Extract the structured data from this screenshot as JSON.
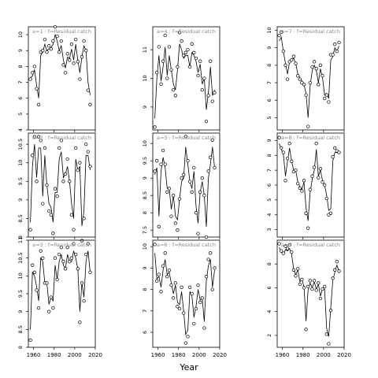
{
  "chart_data": {
    "type": "line",
    "layout": "3x3 grid of panels, column-major (a=1..3 first column, a=4..6 second, a=7..9 third)",
    "xlabel": "Year",
    "x_ticks": [
      1960,
      1980,
      2000,
      2020
    ],
    "x_tick_labels_on_bottom_row_only": true,
    "xlim": [
      1955,
      2020
    ],
    "point_marker": "open circle",
    "fitted_line": "solid",
    "panels": [
      {
        "label": "a=1  :  f=Residual catch",
        "ylim": [
          4,
          10.5
        ],
        "y_ticks": [
          4,
          5,
          6,
          7,
          8,
          9,
          10
        ],
        "x": [
          1957,
          1959,
          1961,
          1963,
          1965,
          1967,
          1969,
          1971,
          1973,
          1975,
          1977,
          1979,
          1981,
          1983,
          1985,
          1987,
          1989,
          1991,
          1993,
          1995,
          1997,
          1999,
          2001,
          2003,
          2005,
          2007,
          2009,
          2011,
          2013,
          2015
        ],
        "observed": [
          7.2,
          7.6,
          8.0,
          6.6,
          5.6,
          8.9,
          9.0,
          9.7,
          8.9,
          9.3,
          9.1,
          9.6,
          10.5,
          9.9,
          8.9,
          9.6,
          8.1,
          7.6,
          8.8,
          8.4,
          9.4,
          8.2,
          9.7,
          8.3,
          7.2,
          8.6,
          9.6,
          9.0,
          6.5,
          5.6
        ],
        "fitted": [
          7.3,
          7.4,
          7.8,
          6.8,
          6.0,
          8.7,
          8.9,
          9.4,
          9.0,
          9.1,
          9.2,
          9.4,
          10.0,
          9.6,
          9.0,
          9.3,
          8.4,
          7.9,
          8.6,
          8.5,
          9.1,
          8.4,
          9.4,
          8.4,
          7.6,
          8.6,
          9.3,
          9.0,
          7.0,
          6.2
        ]
      },
      {
        "label": "a=2  :  f=Residual catch",
        "ylim": [
          8.0,
          10.8
        ],
        "y_ticks": [
          8.0,
          8.5,
          9.0,
          9.5,
          10.0,
          10.5
        ],
        "x": [
          1957,
          1959,
          1961,
          1963,
          1965,
          1967,
          1969,
          1971,
          1973,
          1975,
          1977,
          1979,
          1981,
          1983,
          1985,
          1987,
          1989,
          1991,
          1993,
          1995,
          1997,
          1999,
          2001,
          2003,
          2005,
          2007,
          2009,
          2011,
          2013,
          2015
        ],
        "observed": [
          8.2,
          10.2,
          10.7,
          9.5,
          10.7,
          10.6,
          8.9,
          10.4,
          9.4,
          8.7,
          8.6,
          8.1,
          9.3,
          9.1,
          10.4,
          10.6,
          9.5,
          9.7,
          10.1,
          9.5,
          8.6,
          8.2,
          10.4,
          9.8,
          10.0,
          7.9,
          8.5,
          10.5,
          10.3,
          9.9
        ],
        "fitted": [
          8.4,
          9.9,
          10.5,
          9.6,
          10.4,
          10.4,
          9.1,
          10.2,
          9.4,
          8.9,
          8.8,
          8.4,
          9.2,
          9.2,
          10.1,
          10.3,
          9.6,
          9.7,
          9.9,
          9.5,
          8.9,
          8.5,
          10.1,
          9.8,
          9.9,
          8.3,
          8.7,
          10.2,
          10.2,
          9.8
        ]
      },
      {
        "label": "a=3  :  f=Residual catch",
        "ylim": [
          8.0,
          11.0
        ],
        "y_ticks": [
          8.0,
          8.5,
          9.0,
          9.5,
          10.0,
          10.5,
          11.0
        ],
        "x": [
          1957,
          1959,
          1961,
          1963,
          1965,
          1967,
          1969,
          1971,
          1973,
          1975,
          1977,
          1979,
          1981,
          1983,
          1985,
          1987,
          1989,
          1991,
          1993,
          1995,
          1997,
          1999,
          2001,
          2003,
          2005,
          2007,
          2009,
          2011,
          2013,
          2015
        ],
        "observed": [
          8.2,
          10.3,
          10.1,
          9.6,
          9.1,
          10.7,
          10.5,
          9.8,
          9.8,
          9.0,
          9.4,
          9.1,
          10.5,
          9.9,
          10.6,
          10.8,
          10.4,
          10.2,
          10.8,
          10.4,
          10.5,
          10.9,
          10.6,
          10.2,
          8.7,
          9.8,
          9.3,
          10.6,
          10.9,
          10.1
        ],
        "fitted": [
          8.5,
          10.1,
          10.0,
          9.7,
          9.3,
          10.5,
          10.4,
          9.8,
          9.8,
          9.2,
          9.4,
          9.3,
          10.3,
          9.9,
          10.4,
          10.6,
          10.3,
          10.2,
          10.6,
          10.4,
          10.4,
          10.7,
          10.5,
          10.2,
          9.0,
          9.8,
          9.4,
          10.4,
          10.7,
          10.1
        ]
      },
      {
        "label": "a=4  :  f=Residual catch",
        "ylim": [
          8.2,
          11.8
        ],
        "y_ticks": [
          9,
          10,
          11
        ],
        "x": [
          1957,
          1959,
          1961,
          1963,
          1965,
          1967,
          1969,
          1971,
          1973,
          1975,
          1977,
          1979,
          1981,
          1983,
          1985,
          1987,
          1989,
          1991,
          1993,
          1995,
          1997,
          1999,
          2001,
          2003,
          2005,
          2007,
          2009,
          2011,
          2013,
          2015
        ],
        "observed": [
          8.3,
          10.2,
          11.1,
          9.8,
          10.6,
          11.5,
          10.0,
          11.1,
          10.3,
          9.6,
          9.4,
          10.4,
          11.6,
          11.3,
          10.8,
          10.9,
          11.0,
          10.4,
          11.2,
          10.9,
          10.7,
          10.1,
          10.6,
          9.6,
          10.0,
          8.5,
          9.4,
          10.6,
          9.2,
          9.5
        ],
        "fitted": [
          8.6,
          10.0,
          10.8,
          9.9,
          10.4,
          11.1,
          10.1,
          10.8,
          10.3,
          9.8,
          9.6,
          10.3,
          11.2,
          11.0,
          10.7,
          10.8,
          10.8,
          10.4,
          10.9,
          10.8,
          10.6,
          10.2,
          10.5,
          9.8,
          10.0,
          8.9,
          9.5,
          10.4,
          9.4,
          9.6
        ]
      },
      {
        "label": "a=5  :  f=Residual catch",
        "ylim": [
          7.3,
          10.3
        ],
        "y_ticks": [
          7.5,
          8.0,
          8.5,
          9.0,
          9.5,
          10.0
        ],
        "x": [
          1957,
          1959,
          1961,
          1963,
          1965,
          1967,
          1969,
          1971,
          1973,
          1975,
          1977,
          1979,
          1981,
          1983,
          1985,
          1987,
          1989,
          1991,
          1993,
          1995,
          1997,
          1999,
          2001,
          2003,
          2005,
          2007,
          2009,
          2011,
          2013,
          2015
        ],
        "observed": [
          9.2,
          9.5,
          7.6,
          9.4,
          9.8,
          9.4,
          8.6,
          8.7,
          7.9,
          8.5,
          7.7,
          7.5,
          8.4,
          9.0,
          9.1,
          10.2,
          9.5,
          8.9,
          8.6,
          9.3,
          8.0,
          7.4,
          8.6,
          9.0,
          8.5,
          7.3,
          9.2,
          9.6,
          10.1,
          9.3
        ],
        "fitted": [
          9.1,
          9.3,
          7.9,
          9.2,
          9.6,
          9.3,
          8.7,
          8.7,
          8.1,
          8.5,
          7.9,
          7.8,
          8.4,
          8.9,
          9.0,
          9.9,
          9.4,
          8.9,
          8.7,
          9.2,
          8.2,
          7.7,
          8.6,
          8.9,
          8.5,
          7.6,
          9.0,
          9.4,
          9.9,
          9.3
        ]
      },
      {
        "label": "a=6  :  f=Residual catch",
        "ylim": [
          5.3,
          10.3
        ],
        "y_ticks": [
          6,
          7,
          8,
          9,
          10
        ],
        "x": [
          1957,
          1959,
          1961,
          1963,
          1965,
          1967,
          1969,
          1971,
          1973,
          1975,
          1977,
          1979,
          1981,
          1983,
          1985,
          1987,
          1989,
          1991,
          1993,
          1995,
          1997,
          1999,
          2001,
          2003,
          2005,
          2007,
          2009,
          2011,
          2013,
          2015
        ],
        "observed": [
          10.1,
          8.4,
          8.7,
          7.9,
          9.1,
          9.7,
          8.6,
          8.9,
          8.2,
          7.6,
          8.3,
          7.2,
          7.1,
          8.1,
          6.9,
          5.5,
          5.8,
          8.1,
          7.8,
          6.4,
          7.1,
          8.2,
          7.4,
          7.6,
          6.2,
          8.6,
          9.4,
          9.7,
          8.0,
          9.0
        ],
        "fitted": [
          9.7,
          8.5,
          8.6,
          8.1,
          8.9,
          9.4,
          8.7,
          8.8,
          8.3,
          7.8,
          8.2,
          7.4,
          7.3,
          7.9,
          7.0,
          5.9,
          6.1,
          7.9,
          7.7,
          6.7,
          7.2,
          8.0,
          7.5,
          7.6,
          6.5,
          8.4,
          9.1,
          9.4,
          8.1,
          8.9
        ]
      },
      {
        "label": "a=7  :  f=Residual catch",
        "ylim": [
          4.3,
          10.2
        ],
        "y_ticks": [
          5,
          6,
          7,
          8,
          9,
          10
        ],
        "x": [
          1957,
          1959,
          1961,
          1963,
          1965,
          1967,
          1969,
          1971,
          1973,
          1975,
          1977,
          1979,
          1981,
          1983,
          1985,
          1987,
          1989,
          1991,
          1993,
          1995,
          1997,
          1999,
          2001,
          2003,
          2005,
          2007,
          2009,
          2011,
          2013,
          2015
        ],
        "observed": [
          9.7,
          9.9,
          8.8,
          8.0,
          7.2,
          8.2,
          8.3,
          8.5,
          8.1,
          7.4,
          7.2,
          7.0,
          6.9,
          6.3,
          4.5,
          7.0,
          7.9,
          8.2,
          7.8,
          6.9,
          8.0,
          7.4,
          6.1,
          6.3,
          5.9,
          8.6,
          8.6,
          9.2,
          8.8,
          9.3
        ],
        "fitted": [
          9.4,
          9.6,
          8.8,
          8.1,
          7.5,
          8.2,
          8.3,
          8.4,
          8.1,
          7.5,
          7.3,
          7.1,
          6.9,
          6.4,
          5.0,
          6.8,
          7.7,
          8.0,
          7.7,
          7.0,
          7.8,
          7.3,
          6.3,
          6.4,
          6.1,
          8.3,
          8.5,
          9.0,
          8.8,
          9.1
        ]
      },
      {
        "label": "a=8  :  f=Residual catch",
        "ylim": [
          2.5,
          9.5
        ],
        "y_ticks": [
          3,
          4,
          5,
          6,
          7,
          8,
          9
        ],
        "x": [
          1957,
          1959,
          1961,
          1963,
          1965,
          1967,
          1969,
          1971,
          1973,
          1975,
          1977,
          1979,
          1981,
          1983,
          1985,
          1987,
          1989,
          1991,
          1993,
          1995,
          1997,
          1999,
          2001,
          2003,
          2005,
          2007,
          2009,
          2011,
          2013,
          2015
        ],
        "observed": [
          9.2,
          8.5,
          8.2,
          6.3,
          7.8,
          8.8,
          7.6,
          6.9,
          7.0,
          6.1,
          5.8,
          5.6,
          6.3,
          4.1,
          3.1,
          5.7,
          6.6,
          7.2,
          8.8,
          6.5,
          7.1,
          6.2,
          6.0,
          5.1,
          4.0,
          4.1,
          7.9,
          8.5,
          8.3,
          8.2
        ],
        "fitted": [
          8.8,
          8.4,
          8.1,
          6.6,
          7.6,
          8.5,
          7.6,
          7.0,
          7.0,
          6.2,
          5.9,
          5.7,
          6.2,
          4.5,
          3.6,
          5.5,
          6.4,
          7.0,
          8.4,
          6.6,
          7.0,
          6.3,
          6.0,
          5.3,
          4.3,
          4.4,
          7.6,
          8.2,
          8.2,
          8.1
        ]
      },
      {
        "label": "a=9  :  f=Residual catch",
        "ylim": [
          1.0,
          10.0
        ],
        "y_ticks": [
          2,
          4,
          6,
          8
        ],
        "x": [
          1957,
          1959,
          1961,
          1963,
          1965,
          1967,
          1969,
          1971,
          1973,
          1975,
          1977,
          1979,
          1981,
          1983,
          1985,
          1987,
          1989,
          1991,
          1993,
          1995,
          1997,
          1999,
          2001,
          2003,
          2005,
          2007,
          2009,
          2011,
          2013,
          2015
        ],
        "observed": [
          9.7,
          9.1,
          8.9,
          9.5,
          9.3,
          9.6,
          9.0,
          7.5,
          7.0,
          7.6,
          6.3,
          6.7,
          6.0,
          2.5,
          6.1,
          6.6,
          5.9,
          6.6,
          5.8,
          6.4,
          5.1,
          5.9,
          6.1,
          2.1,
          1.3,
          4.1,
          6.8,
          7.5,
          8.2,
          7.4
        ],
        "fitted": [
          9.4,
          9.0,
          8.8,
          9.2,
          9.1,
          9.3,
          8.8,
          7.6,
          7.1,
          7.5,
          6.5,
          6.7,
          6.1,
          3.2,
          5.8,
          6.4,
          6.0,
          6.5,
          5.9,
          6.3,
          5.3,
          5.9,
          5.9,
          2.6,
          1.9,
          4.3,
          6.6,
          7.3,
          7.9,
          7.4
        ]
      }
    ]
  }
}
